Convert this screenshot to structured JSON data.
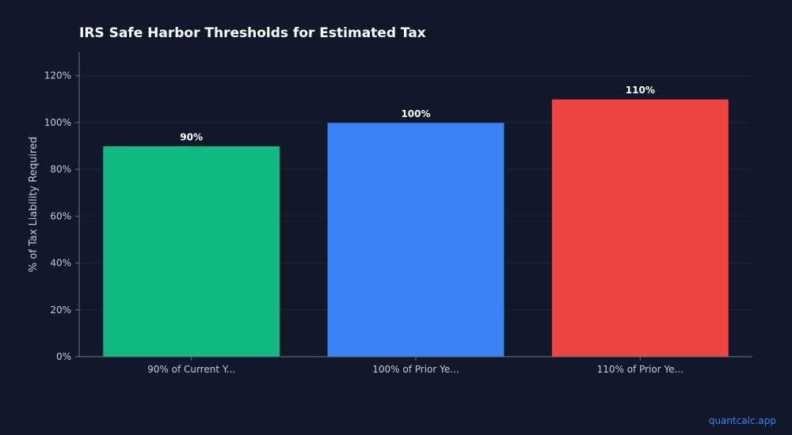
{
  "chart_data": {
    "type": "bar",
    "title": "IRS Safe Harbor Thresholds for Estimated Tax",
    "xlabel": "",
    "ylabel": "% of Tax Liability Required",
    "categories": [
      "90% of Current Y...",
      "100% of Prior Ye...",
      "110% of Prior Ye..."
    ],
    "values": [
      90,
      100,
      110
    ],
    "value_labels": [
      "90%",
      "100%",
      "110%"
    ],
    "bar_colors": [
      "#10b981",
      "#3b82f6",
      "#ef4444"
    ],
    "ylim": [
      0,
      130
    ],
    "yticks": [
      0,
      20,
      40,
      60,
      80,
      100,
      120
    ],
    "ytick_labels": [
      "0%",
      "20%",
      "40%",
      "60%",
      "80%",
      "100%",
      "120%"
    ],
    "grid": true,
    "legend": "none"
  },
  "watermark": "quantcalc.app"
}
